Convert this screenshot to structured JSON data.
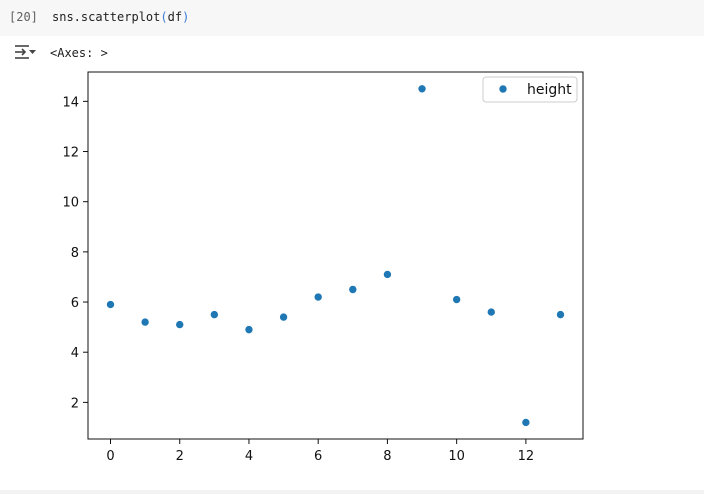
{
  "cell": {
    "execution_count": "[20]",
    "code_prefix": "sns.scatterplot",
    "code_open": "(",
    "code_arg": "df",
    "code_close": ")"
  },
  "output": {
    "toggle_icon": "output-collapse-icon",
    "text": "<Axes: >"
  },
  "chart_data": {
    "type": "scatter",
    "x": [
      0,
      1,
      2,
      3,
      4,
      5,
      6,
      7,
      8,
      9,
      10,
      11,
      12,
      13
    ],
    "series": [
      {
        "name": "height",
        "color": "#1f77b4",
        "values": [
          5.9,
          5.2,
          5.1,
          5.5,
          4.9,
          5.4,
          6.2,
          6.5,
          7.1,
          14.5,
          6.1,
          5.6,
          1.2,
          5.5
        ]
      }
    ],
    "title": "",
    "xlabel": "",
    "ylabel": "",
    "xlim": [
      -0.65,
      13.65
    ],
    "ylim": [
      0.54,
      15.17
    ],
    "xticks": [
      0,
      2,
      4,
      6,
      8,
      10,
      12
    ],
    "yticks": [
      2,
      4,
      6,
      8,
      10,
      12,
      14
    ],
    "grid": false,
    "legend": {
      "position": "top-right",
      "entries": [
        "height"
      ]
    }
  }
}
